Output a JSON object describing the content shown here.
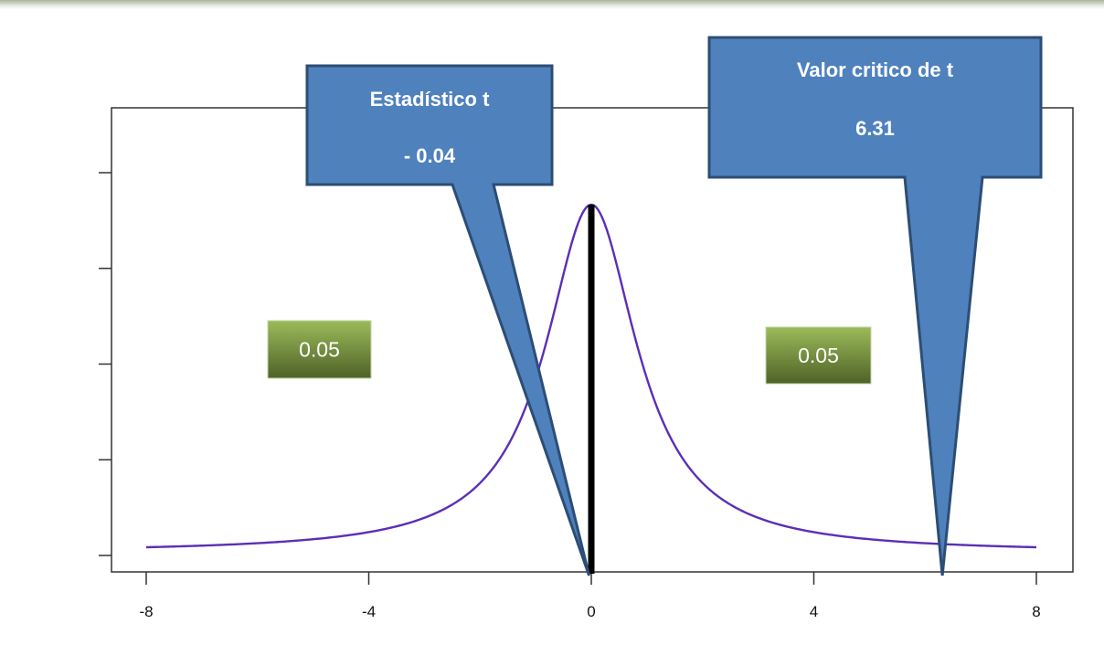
{
  "chart_data": {
    "type": "line",
    "title": "",
    "xlabel": "",
    "ylabel": "",
    "xlim": [
      -8,
      8
    ],
    "x_ticks": [
      -8,
      -4,
      0,
      4,
      8
    ],
    "x_tick_labels": [
      "-8",
      "-4",
      "0",
      "4",
      "8"
    ],
    "y_tick_count": 5,
    "distribution": "t",
    "degrees_of_freedom": 1,
    "series": [
      {
        "color": "#5b2fb5",
        "curve": "t-density",
        "df": 1
      }
    ],
    "marker_line": {
      "x": 0,
      "color": "#000000"
    },
    "callouts": [
      {
        "title": "Estadístico t",
        "value": "- 0.04",
        "points_to_x": -0.04
      },
      {
        "title": "Valor critico de t",
        "value": "6.31",
        "points_to_x": 6.31
      }
    ],
    "region_labels": [
      {
        "side": "left",
        "text": "0.05"
      },
      {
        "side": "right",
        "text": "0.05"
      }
    ]
  },
  "colors": {
    "callout_fill": "#4f81bd",
    "callout_stroke": "#2c4d75",
    "callout_text": "#ffffff",
    "tail_box_top": "#9bbb59",
    "tail_box_bottom": "#4f6228",
    "curve": "#5b2fb5",
    "axis": "#333333"
  }
}
